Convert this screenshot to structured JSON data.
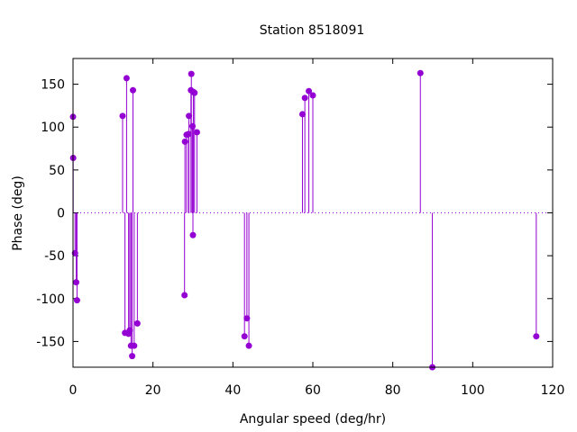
{
  "chart_data": {
    "type": "scatter",
    "style": "impulses-with-points",
    "title": "Station 8518091",
    "xlabel": "Angular speed (deg/hr)",
    "ylabel": "Phase (deg)",
    "xlim": [
      0,
      120
    ],
    "ylim": [
      -180,
      180
    ],
    "xticks": [
      0,
      20,
      40,
      60,
      80,
      100,
      120
    ],
    "yticks": [
      -150,
      -100,
      -50,
      0,
      50,
      100,
      150
    ],
    "zero_line": "dotted",
    "grid": false,
    "color": "#9400d3",
    "series": [
      {
        "points": [
          {
            "x": 0.0,
            "y": 112
          },
          {
            "x": 0.04,
            "y": 64
          },
          {
            "x": 0.5,
            "y": -47
          },
          {
            "x": 0.8,
            "y": -81
          },
          {
            "x": 1.0,
            "y": -102
          },
          {
            "x": 12.4,
            "y": 113
          },
          {
            "x": 13.0,
            "y": -140
          },
          {
            "x": 13.4,
            "y": 157
          },
          {
            "x": 13.9,
            "y": -141
          },
          {
            "x": 14.2,
            "y": -137
          },
          {
            "x": 14.5,
            "y": -155
          },
          {
            "x": 14.8,
            "y": -167
          },
          {
            "x": 15.0,
            "y": 143
          },
          {
            "x": 15.3,
            "y": -155
          },
          {
            "x": 16.1,
            "y": -129
          },
          {
            "x": 27.9,
            "y": -96
          },
          {
            "x": 28.0,
            "y": 83
          },
          {
            "x": 28.4,
            "y": 91
          },
          {
            "x": 28.9,
            "y": 92
          },
          {
            "x": 29.0,
            "y": 113
          },
          {
            "x": 29.5,
            "y": 143
          },
          {
            "x": 29.6,
            "y": 162
          },
          {
            "x": 29.9,
            "y": 101
          },
          {
            "x": 30.0,
            "y": -26
          },
          {
            "x": 30.1,
            "y": 141
          },
          {
            "x": 30.4,
            "y": 140
          },
          {
            "x": 31.0,
            "y": 94
          },
          {
            "x": 42.9,
            "y": -144
          },
          {
            "x": 43.5,
            "y": -123
          },
          {
            "x": 44.0,
            "y": -155
          },
          {
            "x": 57.4,
            "y": 115
          },
          {
            "x": 58.0,
            "y": 134
          },
          {
            "x": 59.0,
            "y": 142
          },
          {
            "x": 60.0,
            "y": 137
          },
          {
            "x": 86.9,
            "y": 163
          },
          {
            "x": 89.9,
            "y": -180
          },
          {
            "x": 115.9,
            "y": -144
          }
        ]
      }
    ]
  }
}
